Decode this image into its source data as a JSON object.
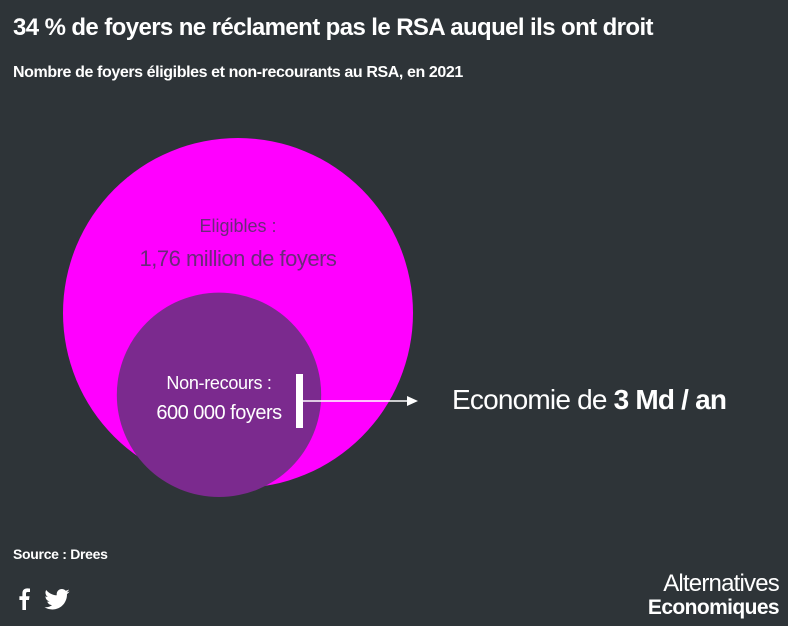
{
  "header": {
    "title": "34 % de foyers ne réclament pas le RSA auquel ils ont droit",
    "subtitle": "Nombre de foyers éligibles et non-recourants au RSA, en 2021"
  },
  "chart_data": {
    "type": "nested-circles",
    "circles": [
      {
        "label": "Eligibles :",
        "value_label": "1,76 million de foyers",
        "value": 1760000,
        "color": "#ff00ff",
        "text_color": "#6b2a7a"
      },
      {
        "label": "Non-recours :",
        "value_label": "600 000 foyers",
        "value": 600000,
        "color": "#7b2a8e",
        "text_color": "#ffffff"
      }
    ],
    "annotation": {
      "prefix": "Economie de ",
      "emphasis": "3 Md / an"
    }
  },
  "footer": {
    "source": "Source : Drees",
    "social_icons": [
      "facebook-icon",
      "twitter-icon"
    ],
    "logo_line1": "Alternatives",
    "logo_line2": "Economiques"
  }
}
